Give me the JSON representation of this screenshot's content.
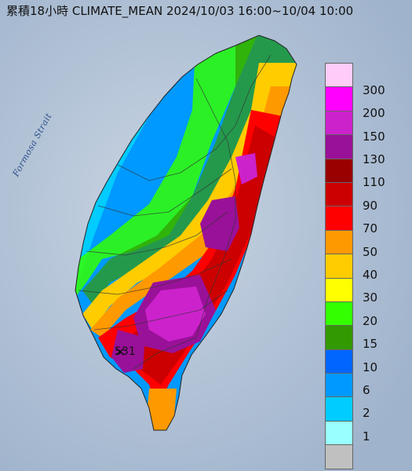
{
  "title": "累積18小時 CLIMATE_MEAN 2024/10/03 16:00~10/04 10:00",
  "strait_label": "Formosa Strait",
  "max_value_label": "531",
  "legend": {
    "items": [
      {
        "label": "300",
        "color": "#ffccf8"
      },
      {
        "label": "200",
        "color": "#ff00ff"
      },
      {
        "label": "150",
        "color": "#cc22cc"
      },
      {
        "label": "130",
        "color": "#991199"
      },
      {
        "label": "110",
        "color": "#990000"
      },
      {
        "label": "90",
        "color": "#cc0000"
      },
      {
        "label": "70",
        "color": "#ff0000"
      },
      {
        "label": "50",
        "color": "#ff9900"
      },
      {
        "label": "40",
        "color": "#ffcc00"
      },
      {
        "label": "30",
        "color": "#ffff00"
      },
      {
        "label": "20",
        "color": "#33ff00"
      },
      {
        "label": "15",
        "color": "#339900"
      },
      {
        "label": "10",
        "color": "#0066ff"
      },
      {
        "label": "6",
        "color": "#0099ff"
      },
      {
        "label": "2",
        "color": "#00ccff"
      },
      {
        "label": "1",
        "color": "#99ffff"
      },
      {
        "label": "",
        "color": "#c0c0c0"
      }
    ]
  },
  "colors": {
    "sea": "#b9c7d8",
    "sea_deep": "#9fb3cc",
    "border_lines": "#333333"
  }
}
